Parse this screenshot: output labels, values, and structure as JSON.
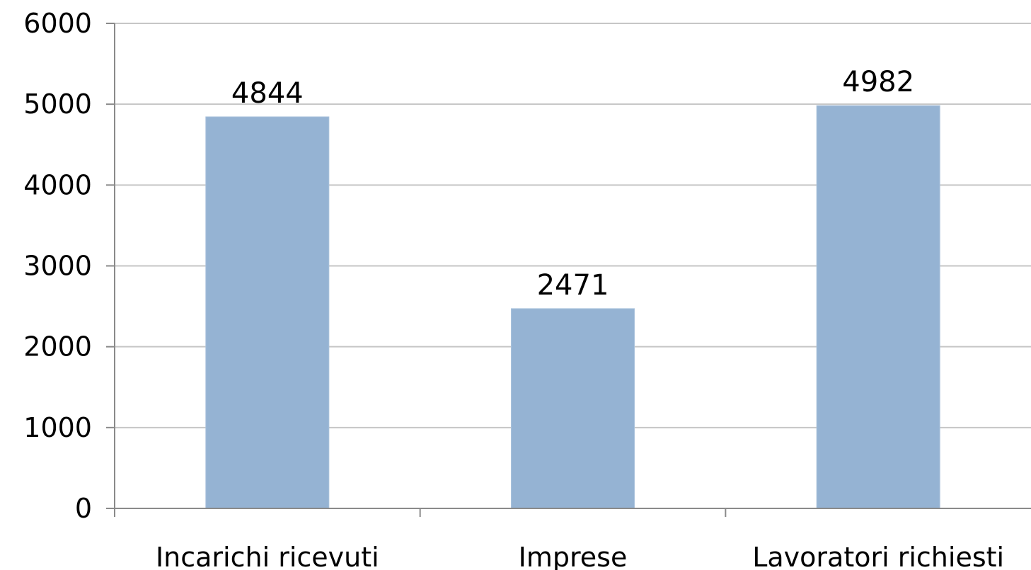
{
  "chart_data": {
    "type": "bar",
    "title": "",
    "xlabel": "",
    "ylabel": "",
    "categories": [
      "Incarichi ricevuti",
      "Imprese",
      "Lavoratori richiesti"
    ],
    "values": [
      4844,
      2471,
      4982
    ],
    "data_labels": [
      "4844",
      "2471",
      "4982"
    ],
    "ylim": [
      0,
      6000
    ],
    "yticks": [
      0,
      1000,
      2000,
      3000,
      4000,
      5000,
      6000
    ],
    "ytick_labels": [
      "0",
      "1000",
      "2000",
      "3000",
      "4000",
      "5000",
      "6000"
    ],
    "grid": true,
    "legend": "none",
    "colors": {
      "bar": "#95b3d3",
      "grid": "#c6c6c6",
      "axis": "#8a8a8a",
      "text": "#000000"
    }
  }
}
